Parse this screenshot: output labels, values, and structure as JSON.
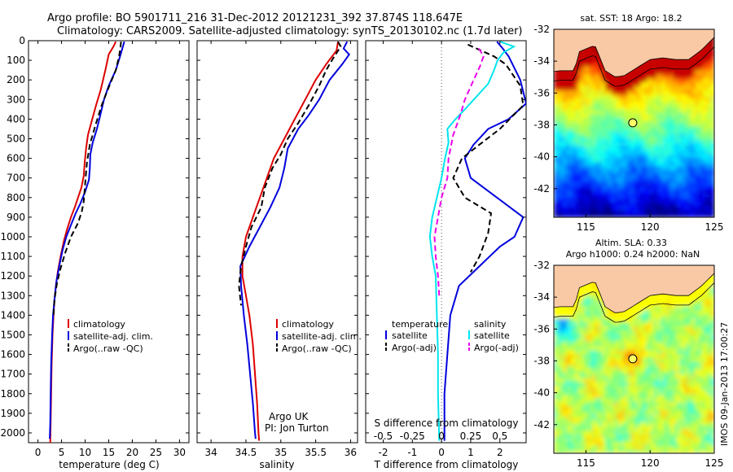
{
  "header": {
    "line1": "Argo profile: BO 5901711_216 31-Dec-2012 20121231_392 37.874S 118.647E",
    "line2": "Climatology: CARS2009. Satellite-adjusted climatology: synTS_20130102.nc (1.7d later)"
  },
  "colors": {
    "climatology": "#dd0000",
    "satellite": "#0000dd",
    "argo": "#000000",
    "satellite_salinity": "#00e5ee",
    "argo_salinity": "#ee00ee",
    "land": "#f9c9a5",
    "marker": "#ffff66"
  },
  "chart_data": [
    {
      "type": "line",
      "xlabel": "temperature (deg C)",
      "ylabel": "",
      "xlim": [
        -2,
        32
      ],
      "ylim": [
        0,
        2050
      ],
      "y_reversed": true,
      "xticks": [
        0,
        5,
        10,
        15,
        20,
        25,
        30
      ],
      "yticks": [
        0,
        100,
        200,
        300,
        400,
        500,
        600,
        700,
        800,
        900,
        1000,
        1100,
        1200,
        1300,
        1400,
        1500,
        1600,
        1700,
        1800,
        1900,
        2000
      ],
      "legend": [
        "climatology",
        "satellite-adj. clim.",
        "Argo(..raw -QC)"
      ],
      "series": [
        {
          "name": "climatology",
          "style": "solid",
          "points": [
            [
              16.5,
              5
            ],
            [
              16.0,
              30
            ],
            [
              15.0,
              70
            ],
            [
              14.3,
              150
            ],
            [
              13.3,
              250
            ],
            [
              12.3,
              330
            ],
            [
              11.4,
              410
            ],
            [
              10.6,
              480
            ],
            [
              10.2,
              550
            ],
            [
              9.9,
              620
            ],
            [
              9.7,
              690
            ],
            [
              9.2,
              750
            ],
            [
              8.5,
              800
            ],
            [
              7.8,
              850
            ],
            [
              7.0,
              900
            ],
            [
              6.2,
              960
            ],
            [
              5.5,
              1020
            ],
            [
              4.8,
              1100
            ],
            [
              4.2,
              1180
            ],
            [
              3.8,
              1250
            ],
            [
              3.5,
              1320
            ],
            [
              3.3,
              1400
            ],
            [
              3.1,
              1500
            ],
            [
              2.9,
              1650
            ],
            [
              2.8,
              1800
            ],
            [
              2.7,
              1950
            ],
            [
              2.6,
              2050
            ]
          ]
        },
        {
          "name": "satellite-adj. clim.",
          "style": "solid",
          "points": [
            [
              18.3,
              5
            ],
            [
              18.0,
              30
            ],
            [
              17.4,
              80
            ],
            [
              16.5,
              150
            ],
            [
              15.0,
              230
            ],
            [
              14.0,
              300
            ],
            [
              13.2,
              380
            ],
            [
              12.5,
              450
            ],
            [
              11.6,
              520
            ],
            [
              11.1,
              580
            ],
            [
              11.0,
              650
            ],
            [
              10.8,
              710
            ],
            [
              10.0,
              770
            ],
            [
              9.0,
              830
            ],
            [
              8.0,
              880
            ],
            [
              7.0,
              940
            ],
            [
              6.0,
              1000
            ],
            [
              5.2,
              1070
            ],
            [
              4.5,
              1150
            ],
            [
              3.9,
              1230
            ],
            [
              3.5,
              1320
            ],
            [
              3.2,
              1400
            ],
            [
              3.0,
              1500
            ],
            [
              2.8,
              1650
            ],
            [
              2.7,
              1800
            ],
            [
              2.6,
              1950
            ],
            [
              2.5,
              2030
            ]
          ]
        },
        {
          "name": "Argo(..raw -QC)",
          "style": "dashed",
          "points": [
            [
              17.6,
              5
            ],
            [
              17.5,
              30
            ],
            [
              17.2,
              80
            ],
            [
              16.5,
              150
            ],
            [
              14.8,
              250
            ],
            [
              13.5,
              330
            ],
            [
              12.2,
              430
            ],
            [
              11.0,
              530
            ],
            [
              10.4,
              620
            ],
            [
              10.1,
              700
            ],
            [
              9.9,
              760
            ],
            [
              9.7,
              820
            ],
            [
              9.3,
              870
            ],
            [
              8.5,
              930
            ],
            [
              7.0,
              1000
            ],
            [
              5.8,
              1080
            ],
            [
              4.8,
              1160
            ],
            [
              4.0,
              1240
            ],
            [
              3.5,
              1320
            ],
            [
              3.3,
              1400
            ]
          ]
        }
      ]
    },
    {
      "type": "line",
      "xlabel": "salinity",
      "ylabel": "",
      "xlim": [
        33.8,
        36.1
      ],
      "ylim": [
        0,
        2050
      ],
      "y_reversed": true,
      "xticks": [
        34,
        34.5,
        35,
        35.5,
        36
      ],
      "legend": [
        "climatology",
        "satellite-adj. clim.",
        "Argo(..raw -QC)"
      ],
      "annotations": [
        "Argo UK",
        "PI: Jon Turton"
      ],
      "series": [
        {
          "name": "climatology",
          "style": "solid",
          "points": [
            [
              35.82,
              5
            ],
            [
              35.8,
              50
            ],
            [
              35.65,
              120
            ],
            [
              35.5,
              200
            ],
            [
              35.35,
              300
            ],
            [
              35.2,
              400
            ],
            [
              35.05,
              500
            ],
            [
              34.9,
              600
            ],
            [
              34.8,
              700
            ],
            [
              34.7,
              800
            ],
            [
              34.6,
              900
            ],
            [
              34.5,
              1000
            ],
            [
              34.45,
              1100
            ],
            [
              34.45,
              1200
            ],
            [
              34.5,
              1300
            ],
            [
              34.55,
              1400
            ],
            [
              34.6,
              1550
            ],
            [
              34.63,
              1700
            ],
            [
              34.66,
              1850
            ],
            [
              34.68,
              2000
            ],
            [
              34.69,
              2040
            ]
          ]
        },
        {
          "name": "satellite-adj. clim.",
          "style": "solid",
          "points": [
            [
              35.95,
              5
            ],
            [
              35.9,
              40
            ],
            [
              35.98,
              70
            ],
            [
              35.88,
              120
            ],
            [
              35.7,
              200
            ],
            [
              35.55,
              300
            ],
            [
              35.4,
              380
            ],
            [
              35.25,
              450
            ],
            [
              35.1,
              550
            ],
            [
              35.05,
              650
            ],
            [
              34.98,
              750
            ],
            [
              34.85,
              850
            ],
            [
              34.7,
              950
            ],
            [
              34.55,
              1050
            ],
            [
              34.42,
              1150
            ],
            [
              34.43,
              1250
            ],
            [
              34.47,
              1400
            ],
            [
              34.52,
              1550
            ],
            [
              34.56,
              1700
            ],
            [
              34.6,
              1850
            ],
            [
              34.63,
              2000
            ],
            [
              34.64,
              2030
            ]
          ]
        },
        {
          "name": "Argo(..raw -QC)",
          "style": "dashed",
          "points": [
            [
              35.82,
              5
            ],
            [
              35.86,
              30
            ],
            [
              35.75,
              90
            ],
            [
              35.65,
              150
            ],
            [
              35.55,
              230
            ],
            [
              35.4,
              330
            ],
            [
              35.25,
              420
            ],
            [
              35.1,
              500
            ],
            [
              35.0,
              580
            ],
            [
              34.88,
              650
            ],
            [
              34.77,
              750
            ],
            [
              34.72,
              850
            ],
            [
              34.58,
              950
            ],
            [
              34.5,
              1050
            ],
            [
              34.43,
              1150
            ],
            [
              34.4,
              1250
            ],
            [
              34.43,
              1350
            ]
          ]
        }
      ]
    },
    {
      "type": "line",
      "xlabel": "T difference from climatology",
      "x2label": "S difference from climatology",
      "xlim": [
        -2.6,
        2.9
      ],
      "x2lim": [
        -0.65,
        0.725
      ],
      "ylim": [
        0,
        2050
      ],
      "y_reversed": true,
      "xticks": [
        -2,
        -1,
        0,
        1,
        2
      ],
      "x2ticks": [
        -0.5,
        -0.25,
        0,
        0.25,
        0.5
      ],
      "x2ticklabels": [
        "-0.5",
        "-0.25",
        "0",
        "0.25",
        "0.5"
      ],
      "legend": [
        "temperature",
        "satellite",
        "Argo(-adj)",
        "salinity",
        "satellite",
        "Argo(-adj)"
      ],
      "series": [
        {
          "name": "temperature satellite",
          "style": "solid",
          "points": [
            [
              1.9,
              5
            ],
            [
              2.1,
              40
            ],
            [
              2.3,
              80
            ],
            [
              2.7,
              200
            ],
            [
              2.9,
              320
            ],
            [
              2.3,
              400
            ],
            [
              1.6,
              450
            ],
            [
              1.1,
              530
            ],
            [
              0.8,
              600
            ],
            [
              1.0,
              700
            ],
            [
              1.9,
              800
            ],
            [
              2.8,
              900
            ],
            [
              2.5,
              1000
            ],
            [
              2.0,
              1050
            ],
            [
              1.3,
              1150
            ],
            [
              0.6,
              1250
            ],
            [
              0.3,
              1400
            ],
            [
              0.2,
              1600
            ],
            [
              0.1,
              1800
            ],
            [
              0.1,
              2040
            ]
          ]
        },
        {
          "name": "temperature Argo(-adj)",
          "style": "dashed",
          "points": [
            [
              0.9,
              20
            ],
            [
              1.2,
              40
            ],
            [
              1.8,
              80
            ],
            [
              2.2,
              120
            ],
            [
              2.7,
              230
            ],
            [
              2.8,
              330
            ],
            [
              2.0,
              450
            ],
            [
              1.3,
              530
            ],
            [
              0.7,
              600
            ],
            [
              0.4,
              700
            ],
            [
              0.8,
              800
            ],
            [
              1.7,
              880
            ],
            [
              1.6,
              980
            ],
            [
              1.3,
              1100
            ],
            [
              1.0,
              1180
            ]
          ]
        },
        {
          "name": "salinity satellite",
          "style": "solid",
          "points": [
            [
              0.5,
              5
            ],
            [
              0.62,
              30
            ],
            [
              0.53,
              60
            ],
            [
              0.48,
              100
            ],
            [
              0.45,
              150
            ],
            [
              0.4,
              220
            ],
            [
              0.2,
              350
            ],
            [
              0.12,
              400
            ],
            [
              0.05,
              450
            ],
            [
              0.06,
              520
            ],
            [
              0.03,
              600
            ],
            [
              0.0,
              700
            ],
            [
              -0.04,
              800
            ],
            [
              -0.08,
              900
            ],
            [
              -0.1,
              1000
            ],
            [
              -0.08,
              1100
            ],
            [
              -0.05,
              1200
            ],
            [
              -0.04,
              1400
            ],
            [
              -0.03,
              1600
            ],
            [
              -0.03,
              1800
            ],
            [
              -0.02,
              2040
            ]
          ]
        },
        {
          "name": "salinity Argo(-adj)",
          "style": "dashed",
          "points": [
            [
              0.32,
              40
            ],
            [
              0.36,
              80
            ],
            [
              0.33,
              130
            ],
            [
              0.26,
              220
            ],
            [
              0.2,
              300
            ],
            [
              0.16,
              380
            ],
            [
              0.1,
              480
            ],
            [
              0.06,
              600
            ],
            [
              0.05,
              700
            ],
            [
              0.0,
              800
            ],
            [
              -0.03,
              900
            ],
            [
              -0.06,
              1000
            ],
            [
              -0.05,
              1100
            ],
            [
              -0.03,
              1200
            ],
            [
              -0.02,
              1300
            ]
          ]
        }
      ]
    },
    {
      "type": "heatmap",
      "title": "sat. SST: 18 Argo: 18.2",
      "xlim": [
        112.5,
        125
      ],
      "ylim": [
        -43.8,
        -32
      ],
      "xticks": [
        115,
        120,
        125
      ],
      "yticks": [
        -32,
        -34,
        -36,
        -38,
        -40,
        -42
      ],
      "marker": {
        "lon": 118.65,
        "lat": -37.87
      },
      "variable": "SST"
    },
    {
      "type": "heatmap",
      "title": "Altim. SLA: 0.33",
      "subtitle": "Argo h1000: 0.24 h2000: NaN",
      "xlim": [
        112.5,
        125
      ],
      "ylim": [
        -43.8,
        -32
      ],
      "xticks": [
        115,
        120,
        125
      ],
      "yticks": [
        -32,
        -34,
        -36,
        -38,
        -40,
        -42
      ],
      "marker": {
        "lon": 118.65,
        "lat": -37.87
      },
      "variable": "SLA"
    }
  ],
  "footer": {
    "stamp": "IMOS 09-Jan-2013 17:00:27"
  }
}
